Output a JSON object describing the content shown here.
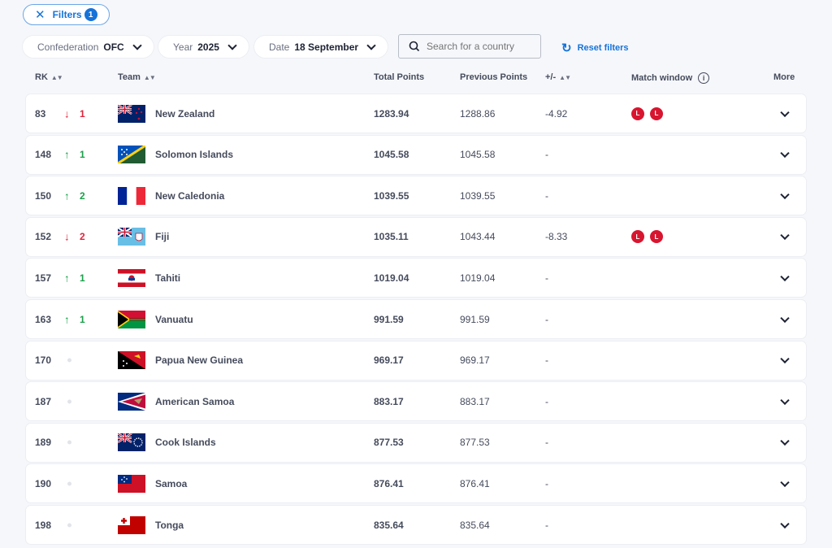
{
  "filters": {
    "label": "Filters",
    "count": "1"
  },
  "dropdowns": [
    {
      "label": "Confederation",
      "value": "OFC"
    },
    {
      "label": "Year",
      "value": "2025"
    },
    {
      "label": "Date",
      "value": "18 September"
    }
  ],
  "search": {
    "placeholder": "Search for a country"
  },
  "reset": "Reset filters",
  "headers": {
    "rk": "RK",
    "team": "Team",
    "total": "Total Points",
    "prev": "Previous Points",
    "diff": "+/-",
    "match": "Match window",
    "more": "More"
  },
  "rows": [
    {
      "rank": "83",
      "dir": "down",
      "change": "1",
      "team": "New Zealand",
      "flag": "nz",
      "total": "1283.94",
      "prev": "1288.86",
      "diff": "-4.92",
      "match": [
        "L",
        "L"
      ]
    },
    {
      "rank": "148",
      "dir": "up",
      "change": "1",
      "team": "Solomon Islands",
      "flag": "sb",
      "total": "1045.58",
      "prev": "1045.58",
      "diff": "-",
      "match": []
    },
    {
      "rank": "150",
      "dir": "up",
      "change": "2",
      "team": "New Caledonia",
      "flag": "nc",
      "total": "1039.55",
      "prev": "1039.55",
      "diff": "-",
      "match": []
    },
    {
      "rank": "152",
      "dir": "down",
      "change": "2",
      "team": "Fiji",
      "flag": "fj",
      "total": "1035.11",
      "prev": "1043.44",
      "diff": "-8.33",
      "match": [
        "L",
        "L"
      ]
    },
    {
      "rank": "157",
      "dir": "up",
      "change": "1",
      "team": "Tahiti",
      "flag": "pf",
      "total": "1019.04",
      "prev": "1019.04",
      "diff": "-",
      "match": []
    },
    {
      "rank": "163",
      "dir": "up",
      "change": "1",
      "team": "Vanuatu",
      "flag": "vu",
      "total": "991.59",
      "prev": "991.59",
      "diff": "-",
      "match": []
    },
    {
      "rank": "170",
      "dir": "none",
      "change": "",
      "team": "Papua New Guinea",
      "flag": "pg",
      "total": "969.17",
      "prev": "969.17",
      "diff": "-",
      "match": []
    },
    {
      "rank": "187",
      "dir": "none",
      "change": "",
      "team": "American Samoa",
      "flag": "as",
      "total": "883.17",
      "prev": "883.17",
      "diff": "-",
      "match": []
    },
    {
      "rank": "189",
      "dir": "none",
      "change": "",
      "team": "Cook Islands",
      "flag": "ck",
      "total": "877.53",
      "prev": "877.53",
      "diff": "-",
      "match": []
    },
    {
      "rank": "190",
      "dir": "none",
      "change": "",
      "team": "Samoa",
      "flag": "ws",
      "total": "876.41",
      "prev": "876.41",
      "diff": "-",
      "match": []
    },
    {
      "rank": "198",
      "dir": "none",
      "change": "",
      "team": "Tonga",
      "flag": "to",
      "total": "835.64",
      "prev": "835.64",
      "diff": "-",
      "match": []
    }
  ]
}
